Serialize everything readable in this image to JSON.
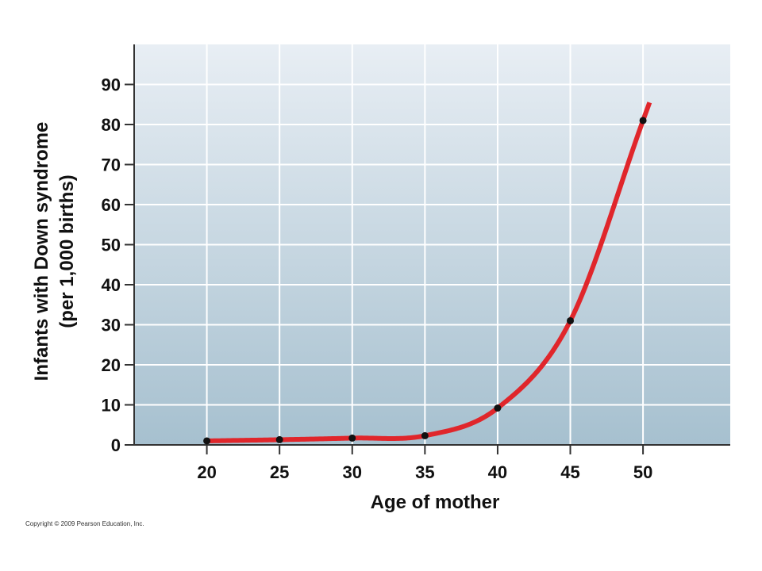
{
  "chart_data": {
    "type": "line",
    "xlabel": "Age of mother",
    "ylabel_lines": [
      "Infants with Down syndrome",
      "(per 1,000 births)"
    ],
    "x_ticks": [
      20,
      25,
      30,
      35,
      40,
      45,
      50
    ],
    "y_ticks": [
      0,
      10,
      20,
      30,
      40,
      50,
      60,
      70,
      80,
      90
    ],
    "xlim": [
      15,
      56
    ],
    "ylim": [
      0,
      100
    ],
    "grid": true,
    "series": [
      {
        "x": [
          20,
          25,
          30,
          35,
          40,
          45,
          50
        ],
        "y": [
          1,
          1.3,
          1.7,
          2.3,
          9.2,
          31,
          81
        ],
        "curve_color": "#e0262b",
        "marker_color": "#111111"
      }
    ]
  },
  "copyright": "Copyright © 2009 Pearson Education, Inc."
}
